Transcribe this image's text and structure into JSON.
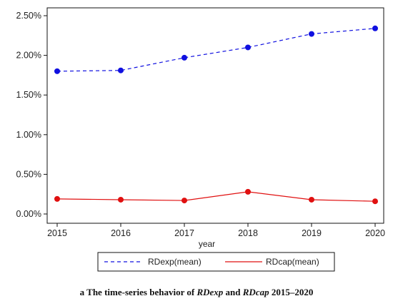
{
  "chart_data": {
    "type": "line",
    "x": [
      2015,
      2016,
      2017,
      2018,
      2019,
      2020
    ],
    "xlabel": "year",
    "ylabel": "",
    "xlim": [
      2015,
      2020
    ],
    "ylim": [
      0,
      2.5
    ],
    "y_ticks": [
      "0.00%",
      "0.50%",
      "1.00%",
      "1.50%",
      "2.00%",
      "2.50%"
    ],
    "x_ticks": [
      "2015",
      "2016",
      "2017",
      "2018",
      "2019",
      "2020"
    ],
    "grid": false,
    "legend_position": "bottom",
    "series": [
      {
        "name": "RDexp(mean)",
        "values": [
          1.8,
          1.81,
          1.97,
          2.1,
          2.27,
          2.34
        ],
        "color": "#1010e0",
        "style": "dashed"
      },
      {
        "name": "RDcap(mean)",
        "values": [
          0.19,
          0.18,
          0.17,
          0.28,
          0.18,
          0.16
        ],
        "color": "#e01010",
        "style": "solid"
      }
    ]
  },
  "caption": {
    "prefix": "a The time-series behavior of ",
    "var1": "RDexp",
    "and": " and ",
    "var2": "RDcap",
    "suffix": " 2015–2020"
  }
}
